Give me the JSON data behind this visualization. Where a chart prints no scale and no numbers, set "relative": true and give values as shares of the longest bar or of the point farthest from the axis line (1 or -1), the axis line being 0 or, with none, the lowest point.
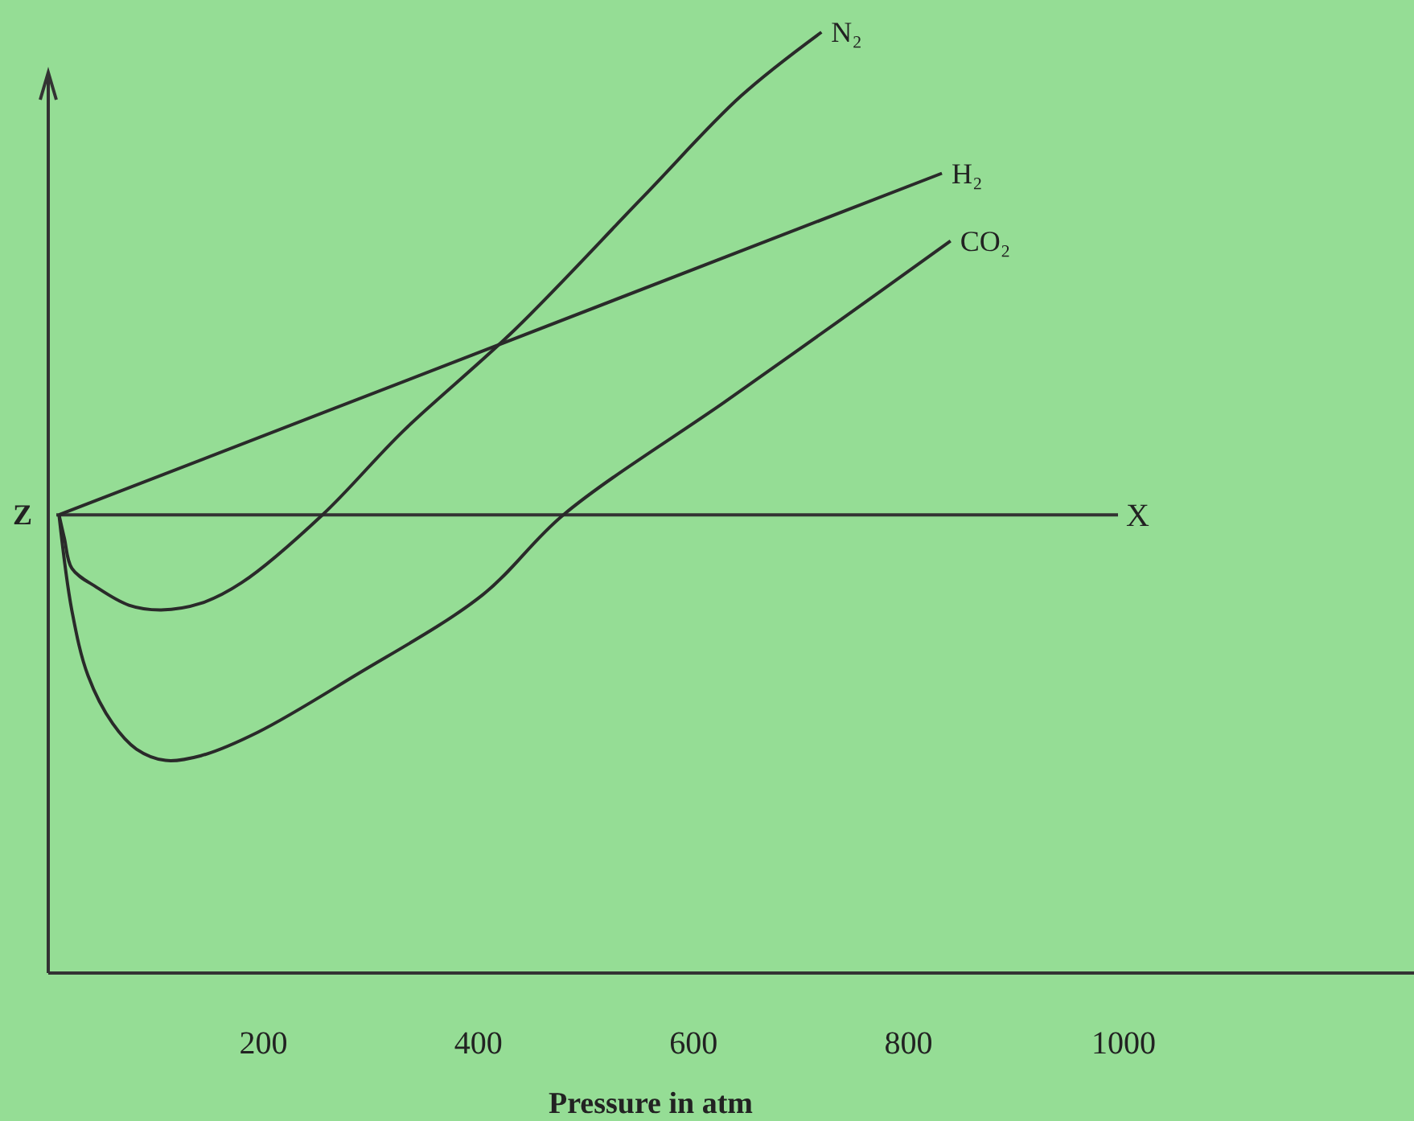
{
  "chart_data": {
    "type": "line",
    "relative": true,
    "xlabel": "Pressure in atm",
    "ylabel": "Z",
    "xlim": [
      0,
      1270
    ],
    "xticks": [
      200,
      400,
      600,
      800,
      1000
    ],
    "grid": false,
    "marker": "none",
    "line_style": "solid",
    "ref_lines": [
      {
        "axis": "y",
        "value": 0.487,
        "label": "X",
        "color": "#333333"
      }
    ],
    "series": [
      {
        "name": "N₂",
        "color": "#2a2a2a",
        "x": [
          10,
          15,
          22,
          45,
          75,
          105,
          142,
          180,
          255,
          330,
          434,
          554,
          644,
          719
        ],
        "values": [
          0.487,
          0.462,
          0.43,
          0.41,
          0.391,
          0.386,
          0.393,
          0.415,
          0.487,
          0.576,
          0.684,
          0.826,
          0.932,
          1.0
        ]
      },
      {
        "name": "H₂",
        "color": "#2a2a2a",
        "x": [
          10,
          831
        ],
        "values": [
          0.487,
          0.85
        ]
      },
      {
        "name": "CO₂",
        "color": "#2a2a2a",
        "x": [
          10,
          22,
          37,
          60,
          82,
          109,
          142,
          195,
          285,
          404,
          479,
          629,
          734,
          839
        ],
        "values": [
          0.487,
          0.385,
          0.316,
          0.265,
          0.238,
          0.226,
          0.231,
          0.256,
          0.316,
          0.402,
          0.487,
          0.607,
          0.692,
          0.778
        ]
      }
    ]
  }
}
